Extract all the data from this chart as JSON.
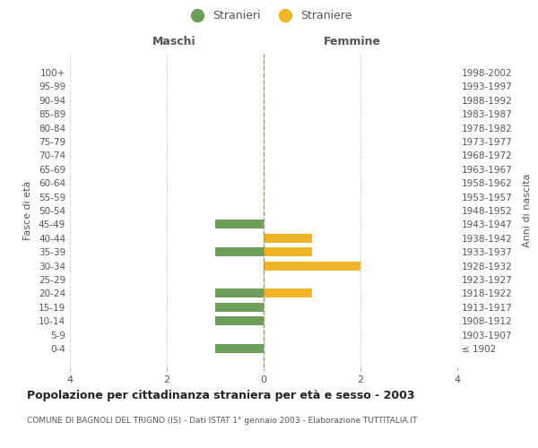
{
  "age_groups": [
    "100+",
    "95-99",
    "90-94",
    "85-89",
    "80-84",
    "75-79",
    "70-74",
    "65-69",
    "60-64",
    "55-59",
    "50-54",
    "45-49",
    "40-44",
    "35-39",
    "30-34",
    "25-29",
    "20-24",
    "15-19",
    "10-14",
    "5-9",
    "0-4"
  ],
  "birth_years": [
    "≤ 1902",
    "1903-1907",
    "1908-1912",
    "1913-1917",
    "1918-1922",
    "1923-1927",
    "1928-1932",
    "1933-1937",
    "1938-1942",
    "1943-1947",
    "1948-1952",
    "1953-1957",
    "1958-1962",
    "1963-1967",
    "1968-1972",
    "1973-1977",
    "1978-1982",
    "1983-1987",
    "1988-1992",
    "1993-1997",
    "1998-2002"
  ],
  "maschi_stranieri": [
    0,
    0,
    0,
    0,
    0,
    0,
    0,
    0,
    0,
    0,
    0,
    1,
    0,
    1,
    0,
    0,
    1,
    1,
    1,
    0,
    1
  ],
  "femmine_straniere": [
    0,
    0,
    0,
    0,
    0,
    0,
    0,
    0,
    0,
    0,
    0,
    0,
    1,
    1,
    2,
    0,
    1,
    0,
    0,
    0,
    0
  ],
  "color_maschi": "#6d9e5a",
  "color_femmine": "#f0b429",
  "title": "Popolazione per cittadinanza straniera per età e sesso - 2003",
  "subtitle": "COMUNE DI BAGNOLI DEL TRIGNO (IS) - Dati ISTAT 1° gennaio 2003 - Elaborazione TUTTITALIA.IT",
  "legend_maschi": "Stranieri",
  "legend_femmine": "Straniere",
  "xlabel_left": "Maschi",
  "xlabel_right": "Femmine",
  "ylabel_left": "Fasce di età",
  "ylabel_right": "Anni di nascita",
  "xlim": 4,
  "background_color": "#ffffff",
  "grid_color": "#cccccc",
  "center_line_color": "#999966"
}
